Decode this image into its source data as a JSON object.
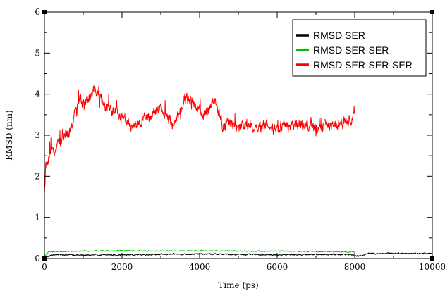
{
  "chart_data": {
    "type": "line",
    "xlabel": "Time (ps)",
    "ylabel": "RMSD (nm)",
    "xlim": [
      0,
      10000
    ],
    "ylim": [
      0,
      6
    ],
    "x_ticks": [
      0,
      2000,
      4000,
      6000,
      8000,
      10000
    ],
    "y_ticks": [
      0,
      1,
      2,
      3,
      4,
      5,
      6
    ],
    "grid": false,
    "legend_position": "top-right",
    "series": [
      {
        "name": "RMSD SER",
        "color": "#000000",
        "x_range": [
          0,
          10000
        ],
        "profile": [
          [
            0,
            0.03
          ],
          [
            300,
            0.1
          ],
          [
            1000,
            0.08
          ],
          [
            2000,
            0.09
          ],
          [
            3000,
            0.1
          ],
          [
            4000,
            0.11
          ],
          [
            5000,
            0.1
          ],
          [
            6000,
            0.09
          ],
          [
            7000,
            0.1
          ],
          [
            7900,
            0.1
          ],
          [
            8100,
            0.05
          ],
          [
            8300,
            0.12
          ],
          [
            9000,
            0.13
          ],
          [
            10000,
            0.12
          ]
        ],
        "noise": 0.03
      },
      {
        "name": "RMSD SER-SER",
        "color": "#00c000",
        "x_range": [
          0,
          8000
        ],
        "profile": [
          [
            0,
            0.05
          ],
          [
            100,
            0.16
          ],
          [
            1000,
            0.18
          ],
          [
            2000,
            0.19
          ],
          [
            3000,
            0.18
          ],
          [
            4000,
            0.19
          ],
          [
            5000,
            0.18
          ],
          [
            6000,
            0.18
          ],
          [
            7000,
            0.17
          ],
          [
            8000,
            0.16
          ]
        ],
        "noise": 0.02
      },
      {
        "name": "RMSD SER-SER-SER",
        "color": "#ff0000",
        "x_range": [
          0,
          8000
        ],
        "profile": [
          [
            0,
            1.5
          ],
          [
            30,
            2.2
          ],
          [
            150,
            2.5
          ],
          [
            400,
            2.85
          ],
          [
            700,
            3.2
          ],
          [
            900,
            3.9
          ],
          [
            1100,
            3.8
          ],
          [
            1300,
            4.1
          ],
          [
            1600,
            3.7
          ],
          [
            2000,
            3.5
          ],
          [
            2300,
            3.2
          ],
          [
            2600,
            3.4
          ],
          [
            3000,
            3.6
          ],
          [
            3300,
            3.3
          ],
          [
            3700,
            3.9
          ],
          [
            4100,
            3.5
          ],
          [
            4400,
            3.8
          ],
          [
            4600,
            3.25
          ],
          [
            5000,
            3.2
          ],
          [
            5500,
            3.25
          ],
          [
            6000,
            3.15
          ],
          [
            6500,
            3.3
          ],
          [
            7000,
            3.2
          ],
          [
            7400,
            3.25
          ],
          [
            7700,
            3.3
          ],
          [
            8000,
            3.45
          ]
        ],
        "noise": 0.25
      }
    ]
  }
}
